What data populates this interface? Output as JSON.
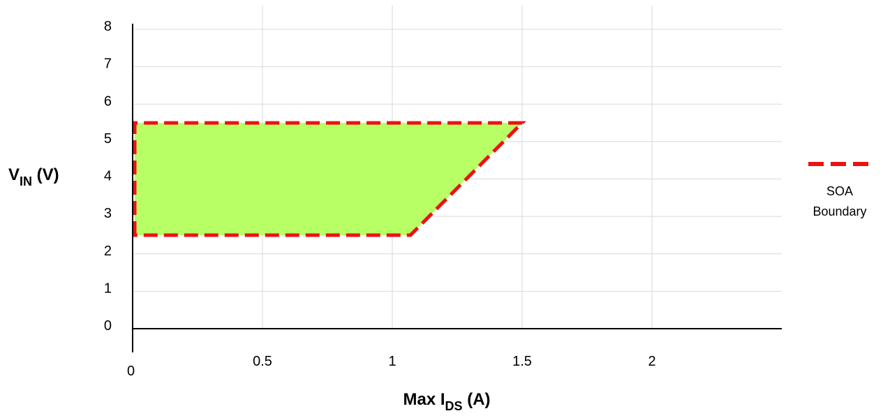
{
  "chart_data": {
    "type": "area",
    "xlabel": {
      "prefix": "Max I",
      "sub": "DS",
      "suffix": " (A)"
    },
    "ylabel": {
      "prefix": "V",
      "sub": "IN",
      "suffix": " (V)"
    },
    "xlim": [
      0,
      2.5
    ],
    "ylim": [
      0,
      8
    ],
    "x_ticks": [
      0,
      0.5,
      1,
      1.5,
      2
    ],
    "x_tick_labels": [
      "0",
      "0.5",
      "1",
      "1.5",
      "2"
    ],
    "y_ticks": [
      0,
      1,
      2,
      3,
      4,
      5,
      6,
      7,
      8
    ],
    "y_tick_labels": [
      "0",
      "1",
      "2",
      "3",
      "4",
      "5",
      "6",
      "7",
      "8"
    ],
    "grid": true,
    "legend_position": "right",
    "series": [
      {
        "name": "SOA Boundary",
        "legend_lines": [
          "SOA",
          "Boundary"
        ],
        "line_style": "dashed",
        "line_color": "#ee1111",
        "fill_color": "#b8ff66",
        "points": [
          {
            "x": 0,
            "y": 2.5
          },
          {
            "x": 0,
            "y": 5.5
          },
          {
            "x": 1.5,
            "y": 5.5
          },
          {
            "x": 1.07,
            "y": 2.5
          }
        ]
      }
    ]
  }
}
